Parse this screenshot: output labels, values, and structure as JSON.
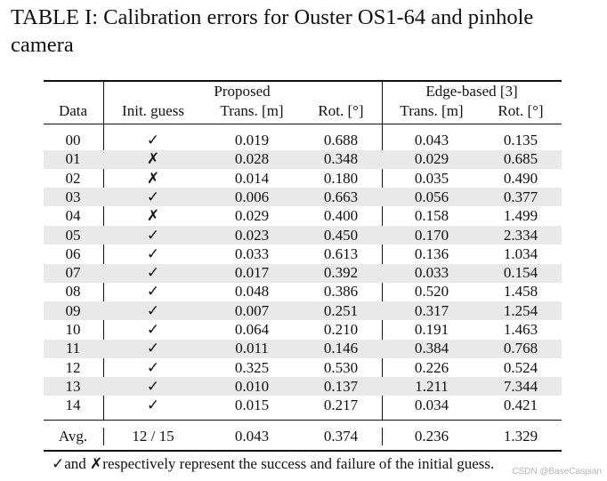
{
  "caption": "TABLE I: Calibration errors for Ouster OS1-64 and pinhole camera",
  "groups": {
    "proposed": "Proposed",
    "edge": "Edge-based [3]"
  },
  "columns": [
    "Data",
    "Init. guess",
    "Trans. [m]",
    "Rot. [°]",
    "Trans. [m]",
    "Rot. [°]"
  ],
  "rows": [
    {
      "data": "00",
      "guess": "✓",
      "p_trans": "0.019",
      "p_rot": "0.688",
      "e_trans": "0.043",
      "e_rot": "0.135"
    },
    {
      "data": "01",
      "guess": "✗",
      "p_trans": "0.028",
      "p_rot": "0.348",
      "e_trans": "0.029",
      "e_rot": "0.685"
    },
    {
      "data": "02",
      "guess": "✗",
      "p_trans": "0.014",
      "p_rot": "0.180",
      "e_trans": "0.035",
      "e_rot": "0.490"
    },
    {
      "data": "03",
      "guess": "✓",
      "p_trans": "0.006",
      "p_rot": "0.663",
      "e_trans": "0.056",
      "e_rot": "0.377"
    },
    {
      "data": "04",
      "guess": "✗",
      "p_trans": "0.029",
      "p_rot": "0.400",
      "e_trans": "0.158",
      "e_rot": "1.499"
    },
    {
      "data": "05",
      "guess": "✓",
      "p_trans": "0.023",
      "p_rot": "0.450",
      "e_trans": "0.170",
      "e_rot": "2.334"
    },
    {
      "data": "06",
      "guess": "✓",
      "p_trans": "0.033",
      "p_rot": "0.613",
      "e_trans": "0.136",
      "e_rot": "1.034"
    },
    {
      "data": "07",
      "guess": "✓",
      "p_trans": "0.017",
      "p_rot": "0.392",
      "e_trans": "0.033",
      "e_rot": "0.154"
    },
    {
      "data": "08",
      "guess": "✓",
      "p_trans": "0.048",
      "p_rot": "0.386",
      "e_trans": "0.520",
      "e_rot": "1.458"
    },
    {
      "data": "09",
      "guess": "✓",
      "p_trans": "0.007",
      "p_rot": "0.251",
      "e_trans": "0.317",
      "e_rot": "1.254"
    },
    {
      "data": "10",
      "guess": "✓",
      "p_trans": "0.064",
      "p_rot": "0.210",
      "e_trans": "0.191",
      "e_rot": "1.463"
    },
    {
      "data": "11",
      "guess": "✓",
      "p_trans": "0.011",
      "p_rot": "0.146",
      "e_trans": "0.384",
      "e_rot": "0.768"
    },
    {
      "data": "12",
      "guess": "✓",
      "p_trans": "0.325",
      "p_rot": "0.530",
      "e_trans": "0.226",
      "e_rot": "0.524"
    },
    {
      "data": "13",
      "guess": "✓",
      "p_trans": "0.010",
      "p_rot": "0.137",
      "e_trans": "1.211",
      "e_rot": "7.344"
    },
    {
      "data": "14",
      "guess": "✓",
      "p_trans": "0.015",
      "p_rot": "0.217",
      "e_trans": "0.034",
      "e_rot": "0.421"
    }
  ],
  "avg": {
    "data": "Avg.",
    "guess": "12 / 15",
    "p_trans": "0.043",
    "p_rot": "0.374",
    "e_trans": "0.236",
    "e_rot": "1.329"
  },
  "footnote": "✓and ✗respectively represent the success and failure of the initial guess.",
  "watermark": "CSDN @BaseCaspian"
}
